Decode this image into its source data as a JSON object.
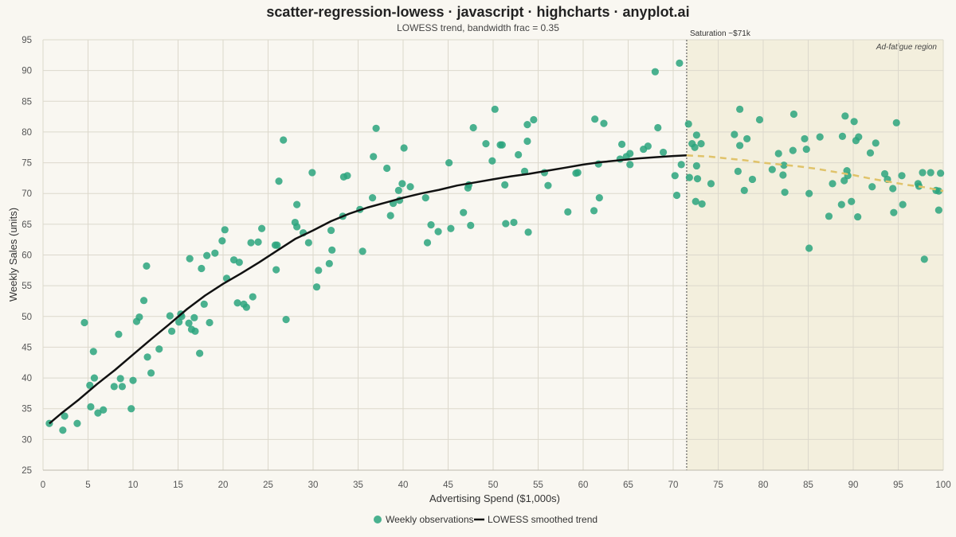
{
  "chart_data": {
    "type": "scatter",
    "title": "scatter-regression-lowess · javascript · highcharts · anyplot.ai",
    "subtitle": "LOWESS trend, bandwidth frac = 0.35",
    "xlabel": "Advertising Spend ($1,000s)",
    "ylabel": "Weekly Sales (units)",
    "xlim": [
      0,
      100
    ],
    "ylim": [
      25,
      95
    ],
    "x_ticks": [
      0,
      5,
      10,
      15,
      20,
      25,
      30,
      35,
      40,
      45,
      50,
      55,
      60,
      65,
      70,
      75,
      80,
      85,
      90,
      95,
      100
    ],
    "y_ticks": [
      25,
      30,
      35,
      40,
      45,
      50,
      55,
      60,
      65,
      70,
      75,
      80,
      85,
      90,
      95
    ],
    "grid": true,
    "legend_position": "bottom-center",
    "colors": {
      "scatter": "#2ba57e",
      "trend": "#111111",
      "trend_extension": "#e0c36a",
      "band": "#f3efdd",
      "background": "#f9f7f1"
    },
    "saturation_line": {
      "x": 71.5,
      "label": "Saturation ~$71k"
    },
    "plot_band": {
      "from": 71.5,
      "to": 100,
      "label": "Ad-fatigue region"
    },
    "series": [
      {
        "name": "Weekly observations",
        "type": "scatter",
        "points": [
          [
            0.7,
            32.6
          ],
          [
            2.2,
            31.5
          ],
          [
            2.4,
            33.8
          ],
          [
            3.8,
            32.6
          ],
          [
            4.6,
            49.0
          ],
          [
            5.2,
            38.8
          ],
          [
            5.3,
            35.3
          ],
          [
            5.6,
            44.3
          ],
          [
            5.7,
            40.0
          ],
          [
            6.1,
            34.3
          ],
          [
            6.7,
            34.8
          ],
          [
            7.9,
            38.6
          ],
          [
            8.4,
            47.1
          ],
          [
            8.6,
            39.9
          ],
          [
            8.8,
            38.6
          ],
          [
            9.8,
            35.0
          ],
          [
            10.0,
            39.6
          ],
          [
            10.4,
            49.2
          ],
          [
            10.7,
            49.9
          ],
          [
            11.2,
            52.6
          ],
          [
            11.5,
            58.2
          ],
          [
            11.6,
            43.4
          ],
          [
            12.0,
            40.8
          ],
          [
            12.9,
            44.7
          ],
          [
            14.1,
            50.1
          ],
          [
            14.3,
            47.6
          ],
          [
            15.1,
            49.1
          ],
          [
            15.3,
            50.4
          ],
          [
            15.4,
            50.0
          ],
          [
            16.2,
            48.9
          ],
          [
            16.3,
            59.4
          ],
          [
            16.5,
            47.9
          ],
          [
            16.8,
            49.8
          ],
          [
            16.9,
            47.6
          ],
          [
            17.4,
            44.0
          ],
          [
            17.6,
            57.8
          ],
          [
            17.9,
            52.0
          ],
          [
            18.2,
            59.9
          ],
          [
            18.5,
            49.0
          ],
          [
            19.1,
            60.3
          ],
          [
            19.9,
            62.3
          ],
          [
            20.2,
            64.1
          ],
          [
            20.4,
            56.2
          ],
          [
            21.2,
            59.2
          ],
          [
            21.6,
            52.2
          ],
          [
            21.8,
            58.8
          ],
          [
            22.3,
            52.0
          ],
          [
            22.6,
            51.5
          ],
          [
            23.1,
            62.0
          ],
          [
            23.3,
            53.2
          ],
          [
            23.9,
            62.1
          ],
          [
            24.3,
            64.3
          ],
          [
            25.8,
            61.6
          ],
          [
            26.0,
            61.6
          ],
          [
            26.2,
            72.0
          ],
          [
            25.9,
            57.6
          ],
          [
            26.7,
            78.7
          ],
          [
            27.0,
            49.5
          ],
          [
            28.0,
            65.3
          ],
          [
            28.2,
            68.2
          ],
          [
            28.2,
            64.6
          ],
          [
            28.9,
            63.6
          ],
          [
            29.5,
            62.0
          ],
          [
            29.9,
            73.4
          ],
          [
            30.4,
            54.8
          ],
          [
            30.6,
            57.5
          ],
          [
            31.8,
            58.6
          ],
          [
            32.0,
            64.0
          ],
          [
            32.1,
            60.8
          ],
          [
            33.3,
            66.3
          ],
          [
            33.4,
            72.7
          ],
          [
            33.8,
            72.9
          ],
          [
            35.2,
            67.4
          ],
          [
            35.5,
            60.6
          ],
          [
            36.6,
            69.3
          ],
          [
            36.7,
            76.0
          ],
          [
            37.0,
            80.6
          ],
          [
            38.2,
            74.1
          ],
          [
            38.6,
            66.4
          ],
          [
            38.9,
            68.4
          ],
          [
            39.5,
            70.5
          ],
          [
            39.6,
            68.9
          ],
          [
            39.9,
            71.6
          ],
          [
            40.1,
            77.4
          ],
          [
            40.8,
            71.1
          ],
          [
            42.5,
            69.3
          ],
          [
            42.7,
            62.0
          ],
          [
            43.1,
            64.9
          ],
          [
            43.9,
            63.8
          ],
          [
            45.1,
            75.0
          ],
          [
            45.3,
            64.3
          ],
          [
            46.7,
            66.9
          ],
          [
            47.2,
            70.9
          ],
          [
            47.3,
            71.4
          ],
          [
            47.5,
            64.8
          ],
          [
            47.8,
            80.7
          ],
          [
            49.2,
            78.1
          ],
          [
            49.9,
            75.3
          ],
          [
            50.2,
            83.7
          ],
          [
            50.8,
            77.9
          ],
          [
            51.0,
            77.9
          ],
          [
            51.3,
            71.4
          ],
          [
            51.4,
            65.1
          ],
          [
            52.3,
            65.3
          ],
          [
            52.8,
            76.3
          ],
          [
            53.5,
            73.6
          ],
          [
            53.8,
            78.5
          ],
          [
            53.8,
            81.2
          ],
          [
            53.9,
            63.7
          ],
          [
            54.5,
            82.0
          ],
          [
            55.7,
            73.4
          ],
          [
            56.1,
            71.3
          ],
          [
            58.3,
            67.0
          ],
          [
            59.2,
            73.3
          ],
          [
            59.4,
            73.4
          ],
          [
            61.2,
            67.2
          ],
          [
            61.3,
            82.1
          ],
          [
            61.7,
            74.8
          ],
          [
            61.8,
            69.3
          ],
          [
            62.3,
            81.4
          ],
          [
            64.1,
            75.6
          ],
          [
            64.3,
            78.0
          ],
          [
            64.8,
            76.0
          ],
          [
            65.2,
            76.5
          ],
          [
            65.2,
            74.7
          ],
          [
            66.7,
            77.2
          ],
          [
            67.2,
            77.7
          ],
          [
            68.0,
            89.8
          ],
          [
            68.3,
            80.7
          ],
          [
            68.9,
            76.7
          ],
          [
            70.2,
            72.9
          ],
          [
            70.4,
            69.7
          ],
          [
            70.7,
            91.2
          ],
          [
            70.9,
            74.7
          ],
          [
            71.7,
            81.3
          ],
          [
            71.8,
            72.6
          ],
          [
            72.1,
            78.1
          ],
          [
            72.4,
            77.5
          ],
          [
            72.5,
            68.7
          ],
          [
            72.6,
            79.5
          ],
          [
            72.6,
            74.5
          ],
          [
            72.7,
            72.4
          ],
          [
            73.1,
            78.1
          ],
          [
            73.2,
            68.3
          ],
          [
            74.2,
            71.6
          ],
          [
            76.8,
            79.6
          ],
          [
            77.2,
            73.6
          ],
          [
            77.4,
            77.8
          ],
          [
            77.4,
            83.7
          ],
          [
            77.9,
            70.5
          ],
          [
            78.2,
            78.9
          ],
          [
            78.8,
            72.3
          ],
          [
            79.6,
            82.0
          ],
          [
            81.0,
            73.9
          ],
          [
            81.7,
            76.5
          ],
          [
            82.2,
            73.0
          ],
          [
            82.3,
            74.6
          ],
          [
            82.4,
            70.2
          ],
          [
            83.3,
            77.0
          ],
          [
            83.4,
            82.9
          ],
          [
            84.6,
            78.9
          ],
          [
            84.8,
            77.2
          ],
          [
            85.1,
            70.0
          ],
          [
            85.1,
            61.1
          ],
          [
            86.3,
            79.2
          ],
          [
            87.3,
            66.3
          ],
          [
            87.7,
            71.6
          ],
          [
            88.7,
            68.2
          ],
          [
            88.8,
            79.3
          ],
          [
            89.0,
            72.1
          ],
          [
            89.1,
            82.6
          ],
          [
            89.3,
            73.7
          ],
          [
            89.4,
            72.9
          ],
          [
            89.8,
            68.7
          ],
          [
            90.1,
            81.7
          ],
          [
            90.3,
            78.6
          ],
          [
            90.5,
            66.2
          ],
          [
            90.6,
            79.2
          ],
          [
            91.9,
            76.6
          ],
          [
            92.1,
            71.1
          ],
          [
            92.5,
            78.2
          ],
          [
            93.5,
            73.2
          ],
          [
            93.8,
            72.3
          ],
          [
            94.4,
            70.8
          ],
          [
            94.5,
            66.9
          ],
          [
            94.8,
            81.5
          ],
          [
            95.4,
            72.9
          ],
          [
            95.5,
            68.2
          ],
          [
            97.2,
            71.6
          ],
          [
            97.3,
            71.2
          ],
          [
            97.7,
            73.4
          ],
          [
            97.9,
            59.3
          ],
          [
            98.6,
            73.4
          ],
          [
            99.2,
            70.5
          ],
          [
            99.5,
            70.4
          ],
          [
            99.5,
            67.3
          ],
          [
            99.7,
            73.3
          ]
        ]
      },
      {
        "name": "LOWESS smoothed trend",
        "type": "line",
        "points": [
          [
            0.7,
            32.6
          ],
          [
            2,
            34.2
          ],
          [
            4,
            36.5
          ],
          [
            6,
            39.0
          ],
          [
            8,
            41.3
          ],
          [
            10,
            43.8
          ],
          [
            12,
            46.3
          ],
          [
            14,
            48.7
          ],
          [
            16,
            51.2
          ],
          [
            18,
            53.4
          ],
          [
            20,
            55.3
          ],
          [
            22,
            57.0
          ],
          [
            24,
            58.8
          ],
          [
            26,
            60.7
          ],
          [
            28,
            62.6
          ],
          [
            30,
            64.0
          ],
          [
            32,
            65.5
          ],
          [
            34,
            66.7
          ],
          [
            36,
            67.7
          ],
          [
            38,
            68.5
          ],
          [
            40,
            69.3
          ],
          [
            42,
            70.0
          ],
          [
            44,
            70.6
          ],
          [
            46,
            71.3
          ],
          [
            48,
            71.8
          ],
          [
            50,
            72.3
          ],
          [
            52,
            72.8
          ],
          [
            54,
            73.2
          ],
          [
            56,
            73.7
          ],
          [
            58,
            74.2
          ],
          [
            60,
            74.7
          ],
          [
            62,
            75.1
          ],
          [
            64,
            75.4
          ],
          [
            66,
            75.7
          ],
          [
            68,
            75.9
          ],
          [
            70,
            76.1
          ],
          [
            71.5,
            76.2
          ]
        ]
      },
      {
        "type": "line",
        "style": "dashed",
        "points": [
          [
            71.5,
            76.2
          ],
          [
            74,
            76.0
          ],
          [
            76,
            75.7
          ],
          [
            78,
            75.4
          ],
          [
            80,
            75.0
          ],
          [
            82,
            74.7
          ],
          [
            84,
            74.4
          ],
          [
            86,
            74.0
          ],
          [
            88,
            73.5
          ],
          [
            90,
            73.0
          ],
          [
            92,
            72.4
          ],
          [
            94,
            71.9
          ],
          [
            96,
            71.4
          ],
          [
            98,
            71.0
          ],
          [
            100,
            70.4
          ]
        ]
      }
    ]
  }
}
